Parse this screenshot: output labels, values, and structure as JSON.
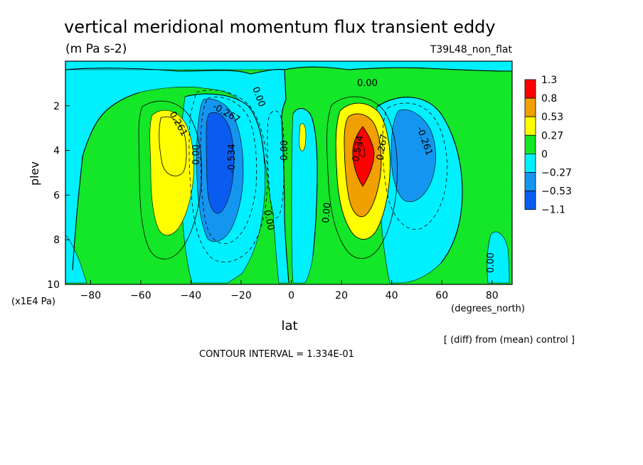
{
  "header": {
    "title": "vertical meridional momentum flux transient eddy",
    "units": "(m Pa s-2)",
    "run_label": "T39L48_non_flat"
  },
  "footer": {
    "diff_note": "[ (diff) from (mean) control ]",
    "contour_interval": "CONTOUR INTERVAL = 1.334E-01"
  },
  "colors": {
    "c_neg3": "#0a5cf0",
    "c_neg2": "#1496f0",
    "c_neg1": "#00f0ff",
    "c_pos1": "#14e628",
    "c_pos2": "#ffff00",
    "c_pos3": "#f0a000",
    "c_pos4": "#ff0000"
  },
  "chart_data": {
    "type": "heatmap",
    "subtype": "filled contour",
    "xlabel": "lat",
    "xunit": "(degrees_north)",
    "ylabel": "plev",
    "yunit": "(x1E4 Pa)",
    "xlim": [
      -90,
      88
    ],
    "ylim": [
      10,
      0
    ],
    "xticks": [
      -80,
      -60,
      -40,
      -20,
      0,
      20,
      40,
      60,
      80
    ],
    "yticks": [
      2,
      4,
      6,
      8,
      10
    ],
    "levels_legend": [
      "1.3",
      "0.8",
      "0.53",
      "0.27",
      "0",
      "-0.27",
      "-0.53",
      "-1.1"
    ],
    "level_colors": [
      "#ff0000",
      "#f0a000",
      "#ffff00",
      "#14e628",
      "#00f0ff",
      "#1496f0",
      "#0a5cf0"
    ],
    "contour_labels": [
      "0.00",
      "0.00",
      "0.00",
      "0.00",
      "0.00",
      "0.00",
      "0.261",
      "-0.267",
      "-0.534",
      "-0.261",
      "0.534",
      "0.267"
    ],
    "features": [
      {
        "kind": "positive",
        "lat": -48,
        "plev": 4.5,
        "peak": 0.5
      },
      {
        "kind": "negative",
        "lat": -29,
        "plev": 4.5,
        "peak": -0.75
      },
      {
        "kind": "positive",
        "lat": 29,
        "plev": 4.0,
        "peak": 1.3
      },
      {
        "kind": "negative",
        "lat": 47,
        "plev": 4.0,
        "peak": -0.4
      },
      {
        "kind": "positive",
        "lat": 5,
        "plev": 3.7,
        "peak": 0.35
      }
    ]
  }
}
